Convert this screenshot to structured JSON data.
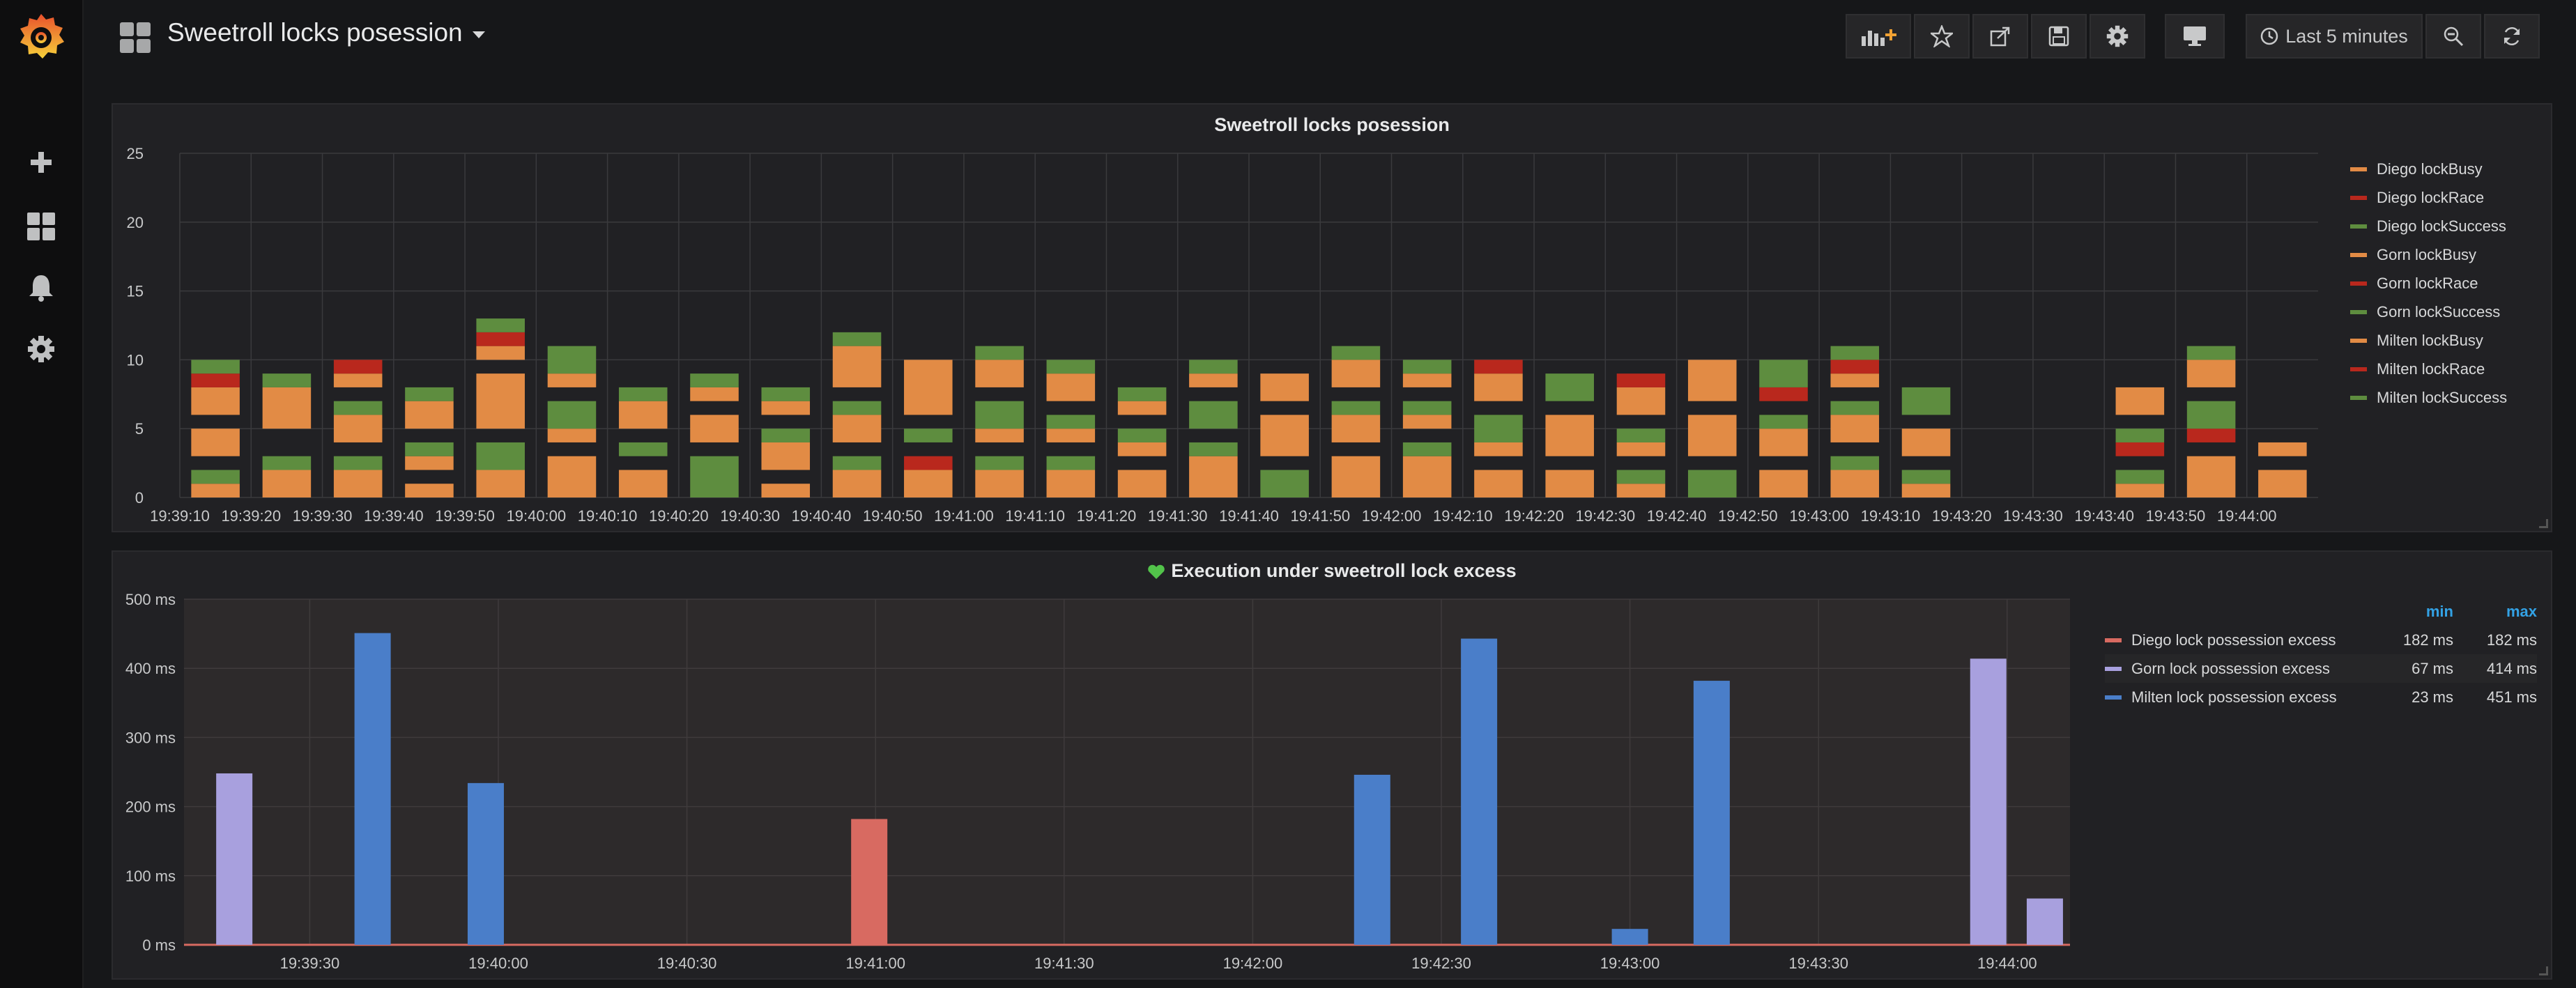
{
  "dashboard": {
    "title": "Sweetroll locks posession"
  },
  "toolbar": {
    "time_range": "Last 5 minutes"
  },
  "colors": {
    "busy": "#e28b45",
    "race": "#b9281d",
    "success": "#5e8d3f",
    "diego_excess": "#d86a61",
    "gorn_excess": "#a8a0de",
    "milten_excess": "#4a7ec9"
  },
  "panel1": {
    "title": "Sweetroll locks posession",
    "legend": [
      {
        "label": "Diego lockBusy",
        "color": "#e28b45"
      },
      {
        "label": "Diego lockRace",
        "color": "#b9281d"
      },
      {
        "label": "Diego lockSuccess",
        "color": "#5e8d3f"
      },
      {
        "label": "Gorn lockBusy",
        "color": "#e28b45"
      },
      {
        "label": "Gorn lockRace",
        "color": "#b9281d"
      },
      {
        "label": "Gorn lockSuccess",
        "color": "#5e8d3f"
      },
      {
        "label": "Milten lockBusy",
        "color": "#e28b45"
      },
      {
        "label": "Milten lockRace",
        "color": "#b9281d"
      },
      {
        "label": "Milten lockSuccess",
        "color": "#5e8d3f"
      }
    ]
  },
  "panel2": {
    "title": "Execution under sweetroll lock excess",
    "legend_headers": {
      "min": "min",
      "max": "max"
    },
    "legend": [
      {
        "label": "Diego lock possession excess",
        "color": "#d86a61",
        "min": "182 ms",
        "max": "182 ms"
      },
      {
        "label": "Gorn lock possession excess",
        "color": "#a8a0de",
        "min": "67 ms",
        "max": "414 ms"
      },
      {
        "label": "Milten lock possession excess",
        "color": "#4a7ec9",
        "min": "23 ms",
        "max": "451 ms"
      }
    ]
  },
  "chart_data": [
    {
      "type": "bar",
      "title": "Sweetroll locks posession",
      "ylim": [
        0,
        25
      ],
      "y_ticks": [
        "0",
        "5",
        "10",
        "15",
        "20",
        "25"
      ],
      "x_ticks": [
        "19:39:10",
        "19:39:20",
        "19:39:30",
        "19:39:40",
        "19:39:50",
        "19:40:00",
        "19:40:10",
        "19:40:20",
        "19:40:30",
        "19:40:40",
        "19:40:50",
        "19:41:00",
        "19:41:10",
        "19:41:20",
        "19:41:30",
        "19:41:40",
        "19:41:50",
        "19:42:00",
        "19:42:10",
        "19:42:20",
        "19:42:30",
        "19:42:40",
        "19:42:50",
        "19:43:00",
        "19:43:10",
        "19:43:20",
        "19:43:30",
        "19:43:40",
        "19:43:50",
        "19:44:00"
      ],
      "stack_order": [
        "Diego",
        "Gorn",
        "Milten"
      ],
      "segment_order": [
        "lockBusy",
        "lockRace",
        "lockSuccess"
      ],
      "series": [
        {
          "slot": 0,
          "stacks": [
            [
              1,
              0,
              1
            ],
            [
              2,
              0,
              0
            ],
            [
              2,
              1,
              1
            ]
          ]
        },
        {
          "slot": 1,
          "stacks": [
            [
              2,
              0,
              1
            ],
            [
              0,
              0,
              0
            ],
            [
              3,
              0,
              1
            ]
          ]
        },
        {
          "slot": 2,
          "stacks": [
            [
              2,
              0,
              1
            ],
            [
              2,
              0,
              1
            ],
            [
              1,
              1,
              0
            ]
          ]
        },
        {
          "slot": 3,
          "stacks": [
            [
              1,
              0,
              0
            ],
            [
              1,
              0,
              1
            ],
            [
              2,
              0,
              1
            ]
          ]
        },
        {
          "slot": 4,
          "stacks": [
            [
              2,
              0,
              2
            ],
            [
              4,
              0,
              0
            ],
            [
              1,
              1,
              1
            ]
          ]
        },
        {
          "slot": 5,
          "stacks": [
            [
              3,
              0,
              0
            ],
            [
              1,
              0,
              2
            ],
            [
              1,
              0,
              2
            ]
          ]
        },
        {
          "slot": 6,
          "stacks": [
            [
              2,
              0,
              0
            ],
            [
              0,
              0,
              1
            ],
            [
              2,
              0,
              1
            ]
          ]
        },
        {
          "slot": 7,
          "stacks": [
            [
              0,
              0,
              3
            ],
            [
              2,
              0,
              0
            ],
            [
              1,
              0,
              1
            ]
          ]
        },
        {
          "slot": 8,
          "stacks": [
            [
              1,
              0,
              0
            ],
            [
              2,
              0,
              1
            ],
            [
              1,
              0,
              1
            ]
          ]
        },
        {
          "slot": 9,
          "stacks": [
            [
              2,
              0,
              1
            ],
            [
              2,
              0,
              1
            ],
            [
              3,
              0,
              1
            ]
          ]
        },
        {
          "slot": 10,
          "stacks": [
            [
              2,
              1,
              0
            ],
            [
              0,
              0,
              1
            ],
            [
              4,
              0,
              0
            ]
          ]
        },
        {
          "slot": 11,
          "stacks": [
            [
              2,
              0,
              1
            ],
            [
              1,
              0,
              2
            ],
            [
              2,
              0,
              1
            ]
          ]
        },
        {
          "slot": 12,
          "stacks": [
            [
              2,
              0,
              1
            ],
            [
              1,
              0,
              1
            ],
            [
              2,
              0,
              1
            ]
          ]
        },
        {
          "slot": 13,
          "stacks": [
            [
              2,
              0,
              0
            ],
            [
              1,
              0,
              1
            ],
            [
              1,
              0,
              1
            ]
          ]
        },
        {
          "slot": 14,
          "stacks": [
            [
              3,
              0,
              1
            ],
            [
              0,
              0,
              2
            ],
            [
              1,
              0,
              1
            ]
          ]
        },
        {
          "slot": 15,
          "stacks": [
            [
              0,
              0,
              2
            ],
            [
              3,
              0,
              0
            ],
            [
              2,
              0,
              0
            ]
          ]
        },
        {
          "slot": 16,
          "stacks": [
            [
              3,
              0,
              0
            ],
            [
              2,
              0,
              1
            ],
            [
              2,
              0,
              1
            ]
          ]
        },
        {
          "slot": 17,
          "stacks": [
            [
              3,
              0,
              1
            ],
            [
              1,
              0,
              1
            ],
            [
              1,
              0,
              1
            ]
          ]
        },
        {
          "slot": 18,
          "stacks": [
            [
              2,
              0,
              0
            ],
            [
              1,
              0,
              2
            ],
            [
              2,
              1,
              0
            ]
          ]
        },
        {
          "slot": 19,
          "stacks": [
            [
              2,
              0,
              0
            ],
            [
              3,
              0,
              0
            ],
            [
              0,
              0,
              2
            ]
          ]
        },
        {
          "slot": 20,
          "stacks": [
            [
              1,
              0,
              1
            ],
            [
              1,
              0,
              1
            ],
            [
              2,
              1,
              0
            ]
          ]
        },
        {
          "slot": 21,
          "stacks": [
            [
              0,
              0,
              2
            ],
            [
              3,
              0,
              0
            ],
            [
              3,
              0,
              0
            ]
          ]
        },
        {
          "slot": 22,
          "stacks": [
            [
              2,
              0,
              0
            ],
            [
              2,
              0,
              1
            ],
            [
              0,
              1,
              2
            ]
          ]
        },
        {
          "slot": 23,
          "stacks": [
            [
              2,
              0,
              1
            ],
            [
              2,
              0,
              1
            ],
            [
              1,
              1,
              1
            ]
          ]
        },
        {
          "slot": 24,
          "stacks": [
            [
              1,
              0,
              1
            ],
            [
              2,
              0,
              0
            ],
            [
              0,
              0,
              2
            ]
          ]
        },
        {
          "slot": 25,
          "stacks": [
            [
              0,
              0,
              0
            ],
            [
              0,
              0,
              0
            ],
            [
              0,
              0,
              0
            ]
          ]
        },
        {
          "slot": 26,
          "stacks": [
            [
              0,
              0,
              0
            ],
            [
              0,
              0,
              0
            ],
            [
              0,
              0,
              0
            ]
          ]
        },
        {
          "slot": 27,
          "stacks": [
            [
              1,
              0,
              1
            ],
            [
              0,
              1,
              1
            ],
            [
              2,
              0,
              0
            ]
          ]
        },
        {
          "slot": 28,
          "stacks": [
            [
              3,
              0,
              0
            ],
            [
              0,
              1,
              2
            ],
            [
              2,
              0,
              1
            ]
          ]
        },
        {
          "slot": 29,
          "stacks": [
            [
              2,
              0,
              0
            ],
            [
              1,
              0,
              0
            ],
            [
              0,
              0,
              0
            ]
          ]
        }
      ]
    },
    {
      "type": "bar",
      "title": "Execution under sweetroll lock excess",
      "ylim": [
        0,
        500
      ],
      "y_ticks": [
        "0 ms",
        "100 ms",
        "200 ms",
        "300 ms",
        "400 ms",
        "500 ms"
      ],
      "x_ticks": [
        "19:39:30",
        "19:40:00",
        "19:40:30",
        "19:41:00",
        "19:41:30",
        "19:42:00",
        "19:42:30",
        "19:43:00",
        "19:43:30",
        "19:44:00"
      ],
      "x_range_seconds": [
        0,
        300
      ],
      "series": [
        {
          "name": "Gorn lock possession excess",
          "color": "#a8a0de",
          "points": [
            [
              8,
              248
            ],
            [
              287,
              414
            ],
            [
              296,
              67
            ]
          ]
        },
        {
          "name": "Milten lock possession excess",
          "color": "#4a7ec9",
          "points": [
            [
              30,
              451
            ],
            [
              48,
              234
            ],
            [
              189,
              246
            ],
            [
              206,
              443
            ],
            [
              230,
              23
            ],
            [
              243,
              382
            ]
          ]
        },
        {
          "name": "Diego lock possession excess",
          "color": "#d86a61",
          "points": [
            [
              109,
              182
            ]
          ]
        }
      ]
    }
  ]
}
